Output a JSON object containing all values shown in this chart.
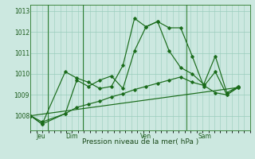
{
  "background_color": "#cce8e0",
  "grid_color": "#99ccbb",
  "line_color": "#1a6b1a",
  "title": "Pression niveau de la mer( hPa )",
  "ylim": [
    1007.3,
    1013.3
  ],
  "yticks": [
    1008,
    1009,
    1010,
    1011,
    1012,
    1013
  ],
  "day_labels": [
    "Jeu",
    "Dim",
    "Ven",
    "Sam"
  ],
  "day_positions": [
    0.5,
    3.0,
    9.5,
    14.5
  ],
  "vline_positions": [
    1.5,
    4.5,
    13.5
  ],
  "xlim": [
    0,
    19
  ],
  "series1_x": [
    0,
    1,
    3,
    4,
    5,
    6,
    7,
    8,
    9,
    10,
    11,
    12,
    13,
    14,
    15,
    16,
    17,
    18
  ],
  "series1_y": [
    1008.0,
    1007.6,
    1010.1,
    1009.8,
    1009.6,
    1009.3,
    1009.4,
    1010.4,
    1012.65,
    1012.25,
    1012.5,
    1011.1,
    1010.3,
    1010.0,
    1009.5,
    1010.85,
    1009.1,
    1009.4
  ],
  "series2_x": [
    0,
    1,
    3,
    4,
    5,
    6,
    7,
    8,
    9,
    10,
    11,
    12,
    13,
    14,
    15,
    16,
    17,
    18
  ],
  "series2_y": [
    1008.0,
    1007.6,
    1008.1,
    1009.7,
    1009.4,
    1009.7,
    1009.9,
    1009.3,
    1011.1,
    1012.25,
    1012.5,
    1012.2,
    1012.2,
    1010.85,
    1009.4,
    1010.1,
    1009.0,
    1009.4
  ],
  "series3_x": [
    0,
    1,
    3,
    4,
    5,
    6,
    7,
    8,
    9,
    10,
    11,
    12,
    13,
    14,
    15,
    16,
    17,
    18
  ],
  "series3_y": [
    1008.0,
    1007.7,
    1008.1,
    1008.4,
    1008.55,
    1008.7,
    1008.9,
    1009.05,
    1009.25,
    1009.4,
    1009.55,
    1009.7,
    1009.85,
    1009.6,
    1009.45,
    1009.1,
    1009.0,
    1009.35
  ],
  "series4_x": [
    0,
    18
  ],
  "series4_y": [
    1008.0,
    1009.35
  ]
}
